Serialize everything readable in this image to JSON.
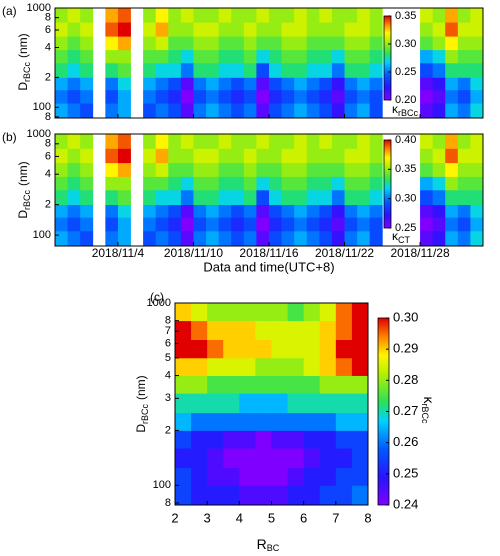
{
  "chart_data": [
    {
      "type": "heatmap",
      "label": "(a)",
      "ylabel": [
        "D",
        "rBCc",
        "(nm)"
      ],
      "colorbar_label": [
        "κ",
        "rBCc"
      ],
      "colormap": "rainbow",
      "log_y": true,
      "xlim": [
        "2018/10/30",
        "2018/12/3"
      ],
      "ylim": [
        78,
        1000
      ],
      "yticks": [
        {
          "value": 80,
          "label": "8"
        },
        100,
        {
          "value": 200,
          "label": "2"
        },
        {
          "value": 400,
          "label": "4"
        },
        {
          "value": 600,
          "label": "6"
        },
        {
          "value": 800,
          "label": "8"
        },
        1000
      ],
      "zlim": [
        0.2,
        0.35
      ],
      "zticks": [
        {
          "value": 0.2,
          "label": "0.20"
        },
        0.25,
        {
          "value": 0.3,
          "label": "0.30"
        },
        0.35
      ],
      "x": [
        "2018/10/30",
        "2018/10/31",
        "2018/11/1",
        "2018/11/2",
        "2018/11/3",
        "2018/11/4",
        "2018/11/5",
        "2018/11/6",
        "2018/11/7",
        "2018/11/8",
        "2018/11/9",
        "2018/11/10",
        "2018/11/11",
        "2018/11/12",
        "2018/11/13",
        "2018/11/14",
        "2018/11/15",
        "2018/11/16",
        "2018/11/17",
        "2018/11/18",
        "2018/11/19",
        "2018/11/20",
        "2018/11/21",
        "2018/11/22",
        "2018/11/23",
        "2018/11/24",
        "2018/11/25",
        "2018/11/26",
        "2018/11/27",
        "2018/11/28",
        "2018/11/29",
        "2018/11/30",
        "2018/12/1",
        "2018/12/2"
      ],
      "y_bins": [
        78,
        110,
        150,
        200,
        280,
        380,
        520,
        720,
        1000
      ],
      "z": [
        [
          0.26,
          0.25,
          0.24,
          null,
          0.25,
          0.26,
          null,
          0.24,
          0.25,
          0.24,
          0.21,
          0.25,
          0.26,
          0.25,
          0.24,
          0.25,
          0.21,
          0.24,
          0.25,
          0.26,
          0.25,
          0.24,
          0.22,
          0.25,
          0.26,
          0.24,
          null,
          null,
          null,
          0.21,
          0.22,
          0.26,
          0.25,
          0.27
        ],
        [
          0.25,
          0.24,
          0.25,
          null,
          0.24,
          0.26,
          null,
          0.25,
          0.24,
          0.23,
          0.2,
          0.24,
          0.25,
          0.24,
          0.23,
          0.24,
          0.2,
          0.23,
          0.24,
          0.25,
          0.24,
          0.23,
          0.21,
          0.24,
          0.25,
          0.24,
          null,
          null,
          null,
          0.2,
          0.21,
          0.25,
          0.24,
          0.26
        ],
        [
          0.26,
          0.25,
          0.26,
          null,
          0.25,
          0.27,
          null,
          0.26,
          0.25,
          0.24,
          0.21,
          0.25,
          0.26,
          0.25,
          0.24,
          0.25,
          0.21,
          0.24,
          0.25,
          0.26,
          0.25,
          0.24,
          0.22,
          0.25,
          0.26,
          0.25,
          null,
          null,
          null,
          0.21,
          0.22,
          0.26,
          0.25,
          0.27
        ],
        [
          0.28,
          0.27,
          0.28,
          null,
          0.28,
          0.29,
          null,
          0.28,
          0.27,
          0.27,
          0.25,
          0.28,
          0.28,
          0.27,
          0.27,
          0.28,
          0.24,
          0.27,
          0.28,
          0.28,
          0.27,
          0.27,
          0.25,
          0.28,
          0.28,
          0.27,
          null,
          null,
          null,
          0.24,
          0.25,
          0.28,
          0.28,
          0.28
        ],
        [
          0.29,
          0.28,
          0.29,
          null,
          0.3,
          0.3,
          null,
          0.29,
          0.29,
          0.28,
          0.27,
          0.29,
          0.29,
          0.28,
          0.28,
          0.29,
          0.27,
          0.28,
          0.29,
          0.29,
          0.28,
          0.28,
          0.27,
          0.29,
          0.29,
          0.28,
          null,
          null,
          null,
          0.26,
          0.27,
          0.3,
          0.29,
          0.29
        ],
        [
          0.3,
          0.29,
          0.3,
          null,
          0.32,
          0.33,
          null,
          0.3,
          0.31,
          0.29,
          0.29,
          0.3,
          0.3,
          0.29,
          0.29,
          0.3,
          0.29,
          0.29,
          0.3,
          0.3,
          0.29,
          0.29,
          0.29,
          0.3,
          0.3,
          0.29,
          null,
          null,
          null,
          0.29,
          0.3,
          0.32,
          0.3,
          0.3
        ],
        [
          0.31,
          0.3,
          0.31,
          null,
          0.34,
          0.35,
          null,
          0.31,
          0.33,
          0.3,
          0.3,
          0.31,
          0.31,
          0.3,
          0.3,
          0.31,
          0.3,
          0.3,
          0.31,
          0.31,
          0.3,
          0.3,
          0.3,
          0.31,
          0.31,
          0.3,
          null,
          null,
          null,
          0.3,
          0.31,
          0.34,
          0.31,
          0.31
        ],
        [
          0.3,
          0.31,
          0.3,
          null,
          0.33,
          0.34,
          null,
          0.3,
          0.32,
          0.3,
          0.31,
          0.3,
          0.3,
          0.31,
          0.3,
          0.3,
          0.31,
          0.3,
          0.3,
          0.31,
          0.3,
          0.31,
          0.3,
          0.3,
          0.31,
          0.3,
          null,
          null,
          null,
          0.31,
          0.3,
          0.33,
          0.3,
          0.31
        ]
      ]
    },
    {
      "type": "heatmap",
      "label": "(b)",
      "ylabel": [
        "D",
        "rBCc",
        "(nm)"
      ],
      "colorbar_label": [
        "κ",
        "CT"
      ],
      "colormap": "rainbow",
      "log_y": true,
      "xlabel": "Data and time(UTC+8)",
      "xlim": [
        "2018/10/30",
        "2018/12/3"
      ],
      "ylim": [
        78,
        1000
      ],
      "xticks": [
        "2018/11/4",
        "2018/11/10",
        "2018/11/16",
        "2018/11/22",
        "2018/11/28"
      ],
      "yticks": [
        100,
        {
          "value": 200,
          "label": "2"
        },
        {
          "value": 400,
          "label": "4"
        },
        {
          "value": 600,
          "label": "6"
        },
        {
          "value": 800,
          "label": "8"
        },
        1000
      ],
      "zlim": [
        0.25,
        0.4
      ],
      "zticks": [
        0.25,
        {
          "value": 0.3,
          "label": "0.30"
        },
        0.35,
        {
          "value": 0.4,
          "label": "0.40"
        }
      ],
      "x": [
        "2018/10/30",
        "2018/10/31",
        "2018/11/1",
        "2018/11/2",
        "2018/11/3",
        "2018/11/4",
        "2018/11/5",
        "2018/11/6",
        "2018/11/7",
        "2018/11/8",
        "2018/11/9",
        "2018/11/10",
        "2018/11/11",
        "2018/11/12",
        "2018/11/13",
        "2018/11/14",
        "2018/11/15",
        "2018/11/16",
        "2018/11/17",
        "2018/11/18",
        "2018/11/19",
        "2018/11/20",
        "2018/11/21",
        "2018/11/22",
        "2018/11/23",
        "2018/11/24",
        "2018/11/25",
        "2018/11/26",
        "2018/11/27",
        "2018/11/28",
        "2018/11/29",
        "2018/11/30",
        "2018/12/1",
        "2018/12/2"
      ],
      "y_bins": [
        78,
        110,
        150,
        200,
        280,
        380,
        520,
        720,
        1000
      ],
      "z": [
        [
          0.31,
          0.3,
          0.29,
          null,
          0.3,
          0.31,
          null,
          0.29,
          0.3,
          0.29,
          0.26,
          0.3,
          0.31,
          0.3,
          0.29,
          0.3,
          0.26,
          0.29,
          0.3,
          0.31,
          0.3,
          0.29,
          0.27,
          0.3,
          0.31,
          0.29,
          null,
          null,
          null,
          0.26,
          0.27,
          0.31,
          0.3,
          0.32
        ],
        [
          0.3,
          0.29,
          0.3,
          null,
          0.29,
          0.31,
          null,
          0.3,
          0.29,
          0.28,
          0.25,
          0.29,
          0.3,
          0.29,
          0.28,
          0.29,
          0.25,
          0.28,
          0.29,
          0.3,
          0.29,
          0.28,
          0.26,
          0.29,
          0.3,
          0.29,
          null,
          null,
          null,
          0.25,
          0.26,
          0.3,
          0.29,
          0.31
        ],
        [
          0.31,
          0.3,
          0.31,
          null,
          0.3,
          0.32,
          null,
          0.31,
          0.3,
          0.29,
          0.26,
          0.3,
          0.31,
          0.3,
          0.29,
          0.3,
          0.26,
          0.29,
          0.3,
          0.31,
          0.3,
          0.29,
          0.27,
          0.3,
          0.31,
          0.3,
          null,
          null,
          null,
          0.26,
          0.27,
          0.31,
          0.3,
          0.32
        ],
        [
          0.33,
          0.32,
          0.33,
          null,
          0.33,
          0.34,
          null,
          0.33,
          0.32,
          0.32,
          0.3,
          0.33,
          0.33,
          0.32,
          0.32,
          0.33,
          0.29,
          0.32,
          0.33,
          0.33,
          0.32,
          0.32,
          0.3,
          0.33,
          0.33,
          0.32,
          null,
          null,
          null,
          0.29,
          0.3,
          0.33,
          0.33,
          0.33
        ],
        [
          0.34,
          0.33,
          0.34,
          null,
          0.35,
          0.35,
          null,
          0.34,
          0.34,
          0.33,
          0.32,
          0.34,
          0.34,
          0.33,
          0.33,
          0.34,
          0.32,
          0.33,
          0.34,
          0.34,
          0.33,
          0.33,
          0.32,
          0.34,
          0.34,
          0.33,
          null,
          null,
          null,
          0.31,
          0.32,
          0.35,
          0.34,
          0.34
        ],
        [
          0.35,
          0.34,
          0.35,
          null,
          0.37,
          0.38,
          null,
          0.35,
          0.36,
          0.34,
          0.34,
          0.35,
          0.35,
          0.34,
          0.34,
          0.35,
          0.34,
          0.34,
          0.35,
          0.35,
          0.34,
          0.34,
          0.34,
          0.35,
          0.35,
          0.34,
          null,
          null,
          null,
          0.34,
          0.35,
          0.37,
          0.35,
          0.35
        ],
        [
          0.36,
          0.35,
          0.36,
          null,
          0.39,
          0.4,
          null,
          0.36,
          0.38,
          0.35,
          0.35,
          0.36,
          0.36,
          0.35,
          0.35,
          0.36,
          0.35,
          0.35,
          0.36,
          0.36,
          0.35,
          0.35,
          0.35,
          0.36,
          0.36,
          0.35,
          null,
          null,
          null,
          0.35,
          0.36,
          0.39,
          0.36,
          0.36
        ],
        [
          0.35,
          0.36,
          0.35,
          null,
          0.38,
          0.39,
          null,
          0.35,
          0.37,
          0.35,
          0.36,
          0.35,
          0.35,
          0.36,
          0.35,
          0.35,
          0.36,
          0.35,
          0.35,
          0.36,
          0.35,
          0.36,
          0.35,
          0.35,
          0.36,
          0.35,
          null,
          null,
          null,
          0.36,
          0.35,
          0.38,
          0.35,
          0.36
        ]
      ]
    },
    {
      "type": "heatmap",
      "label": "(c)",
      "ylabel": [
        "D",
        "rBCc",
        "(nm)"
      ],
      "xlabel": [
        "R",
        "BC"
      ],
      "colorbar_label": [
        "κ",
        "rBCc"
      ],
      "colormap": "rainbow",
      "log_y": true,
      "xlim": [
        2,
        8
      ],
      "ylim": [
        78,
        1000
      ],
      "xticks": [
        2,
        3,
        4,
        5,
        6,
        7,
        8
      ],
      "yticks": [
        {
          "value": 80,
          "label": "8"
        },
        100,
        {
          "value": 200,
          "label": "2"
        },
        {
          "value": 300,
          "label": "3"
        },
        {
          "value": 400,
          "label": "4"
        },
        {
          "value": 500,
          "label": "5"
        },
        {
          "value": 600,
          "label": "6"
        },
        {
          "value": 700,
          "label": "7"
        },
        {
          "value": 800,
          "label": "8"
        },
        1000
      ],
      "zlim": [
        0.24,
        0.3
      ],
      "zticks": [
        0.24,
        0.25,
        0.26,
        0.27,
        0.28,
        0.29,
        {
          "value": 0.3,
          "label": "0.30"
        }
      ],
      "x_bins": [
        2,
        2.5,
        3,
        3.5,
        4,
        4.5,
        5,
        5.5,
        6,
        6.5,
        7,
        7.5,
        8
      ],
      "y_bins": [
        78,
        100,
        125,
        160,
        200,
        250,
        320,
        400,
        500,
        630,
        800,
        1000
      ],
      "z": [
        [
          0.255,
          0.25,
          0.25,
          0.25,
          0.245,
          0.245,
          0.245,
          0.25,
          0.25,
          0.255,
          0.255,
          0.26
        ],
        [
          0.255,
          0.25,
          0.245,
          0.245,
          0.24,
          0.24,
          0.24,
          0.245,
          0.25,
          0.25,
          0.255,
          0.255
        ],
        [
          0.25,
          0.25,
          0.245,
          0.24,
          0.24,
          0.24,
          0.24,
          0.24,
          0.245,
          0.25,
          0.25,
          0.255
        ],
        [
          0.255,
          0.25,
          0.25,
          0.245,
          0.245,
          0.24,
          0.245,
          0.245,
          0.25,
          0.25,
          0.255,
          0.255
        ],
        [
          0.265,
          0.26,
          0.26,
          0.26,
          0.26,
          0.26,
          0.26,
          0.26,
          0.26,
          0.26,
          0.265,
          0.265
        ],
        [
          0.27,
          0.27,
          0.27,
          0.27,
          0.265,
          0.265,
          0.265,
          0.27,
          0.27,
          0.27,
          0.27,
          0.27
        ],
        [
          0.28,
          0.28,
          0.275,
          0.275,
          0.275,
          0.275,
          0.275,
          0.275,
          0.275,
          0.28,
          0.28,
          0.28
        ],
        [
          0.29,
          0.29,
          0.285,
          0.285,
          0.285,
          0.28,
          0.28,
          0.28,
          0.285,
          0.29,
          0.295,
          0.3
        ],
        [
          0.3,
          0.3,
          0.295,
          0.29,
          0.29,
          0.29,
          0.285,
          0.285,
          0.285,
          0.29,
          0.3,
          0.3
        ],
        [
          0.3,
          0.295,
          0.29,
          0.29,
          0.29,
          0.285,
          0.285,
          0.285,
          0.285,
          0.29,
          0.295,
          0.3
        ],
        [
          0.29,
          0.285,
          0.28,
          0.28,
          0.28,
          0.28,
          0.28,
          0.275,
          0.28,
          0.285,
          0.295,
          0.3
        ]
      ]
    }
  ]
}
